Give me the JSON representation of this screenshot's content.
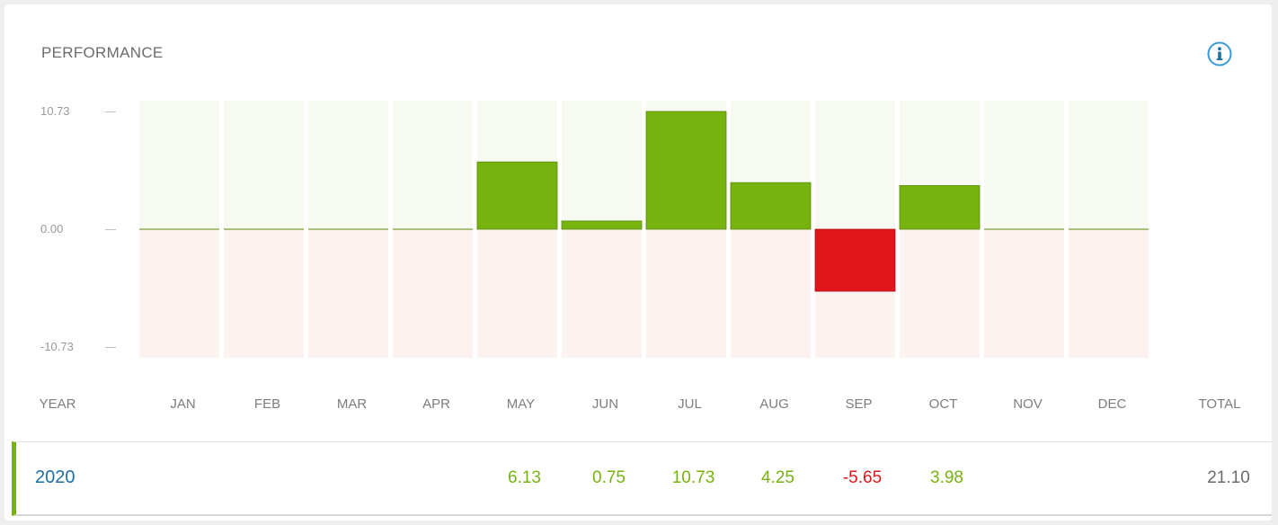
{
  "widget": {
    "title": "PERFORMANCE",
    "info_icon": "info-circle-icon"
  },
  "colors": {
    "positive": "#76b30f",
    "negative": "#e1161d",
    "positive_band": "#f6faf0",
    "negative_band": "#fcf3f1",
    "year_link": "#1d6fa5",
    "total": "#6b6b6b"
  },
  "chart_data": {
    "type": "bar",
    "categories": [
      "JAN",
      "FEB",
      "MAR",
      "APR",
      "MAY",
      "JUN",
      "JUL",
      "AUG",
      "SEP",
      "OCT",
      "NOV",
      "DEC"
    ],
    "series": [
      {
        "values": [
          0,
          0,
          0,
          0,
          6.13,
          0.75,
          10.73,
          4.25,
          -5.65,
          3.98,
          0,
          0
        ]
      }
    ],
    "yticks": [
      "10.73",
      "0.00",
      "-10.73"
    ],
    "ylim": [
      -10.73,
      10.73
    ],
    "grid": false,
    "legend": "none"
  },
  "table": {
    "header_year": "YEAR",
    "header_total": "TOTAL",
    "rows": [
      {
        "year": "2020",
        "months": [
          "",
          "",
          "",
          "",
          "6.13",
          "0.75",
          "10.73",
          "4.25",
          "-5.65",
          "3.98",
          "",
          ""
        ],
        "total": "21.10"
      }
    ]
  }
}
